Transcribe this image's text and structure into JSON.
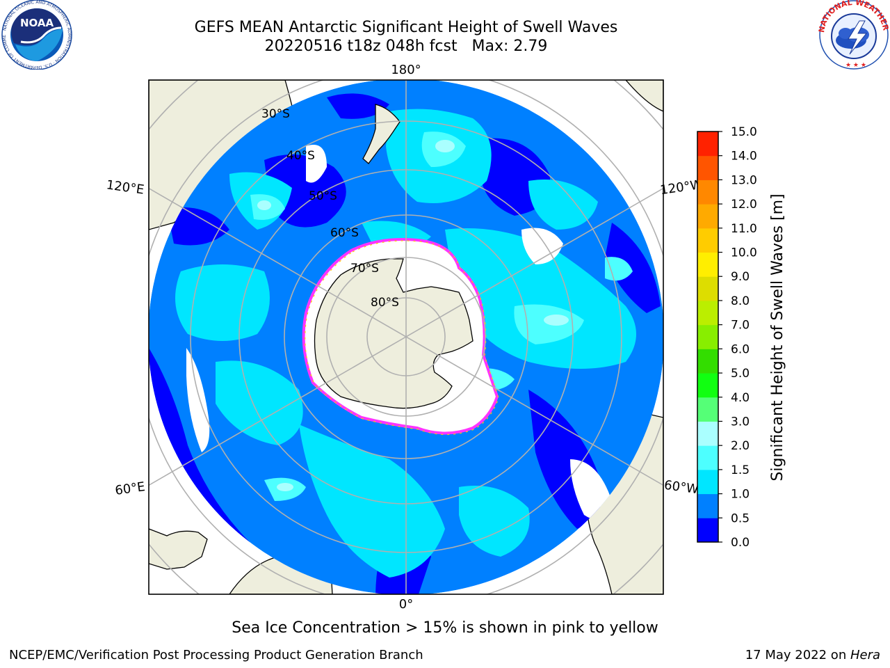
{
  "header": {
    "title_line1": "GEFS MEAN Antarctic Significant Height of Swell Waves",
    "title_line2": "20220516 t18z 048h fcst   Max: 2.79"
  },
  "logos": {
    "noaa_text": "NOAA",
    "noaa_ring_text": "NATIONAL OCEANIC AND ATMOSPHERIC ADMINISTRATION · U.S. DEPARTMENT OF COMMERCE",
    "nws_ring_text": "NATIONAL WEATHER SERVICE"
  },
  "map": {
    "projection": "south-polar-stereographic",
    "longitude_labels": [
      "180°",
      "120°E",
      "120°W",
      "60°E",
      "60°W",
      "0°"
    ],
    "latitude_labels": [
      "30°S",
      "40°S",
      "50°S",
      "60°S",
      "70°S",
      "80°S"
    ],
    "colors": {
      "land": "#eeeedd",
      "gridline": "#b0b0b0",
      "ice": "#ffffff",
      "ice_edge": "#ff33ff"
    }
  },
  "colorbar": {
    "label": "Significant Height of Swell Waves [m]",
    "ticks": [
      "0.0",
      "0.5",
      "1.0",
      "1.5",
      "2.0",
      "3.0",
      "4.0",
      "5.0",
      "6.0",
      "7.0",
      "8.0",
      "9.0",
      "10.0",
      "11.0",
      "12.0",
      "13.0",
      "14.0",
      "15.0"
    ],
    "colors": [
      "#0000ff",
      "#0080ff",
      "#00e6ff",
      "#4dffff",
      "#aaffff",
      "#55ff77",
      "#11ff11",
      "#33dd00",
      "#88ee00",
      "#bbee00",
      "#dddd00",
      "#ffee00",
      "#ffcc00",
      "#ffaa00",
      "#ff8800",
      "#ff5500",
      "#ff2200"
    ]
  },
  "footer": {
    "note": "Sea Ice Concentration > 15% is shown in pink to yellow",
    "credit_left": "NCEP/EMC/Verification Post Processing Product Generation Branch",
    "credit_date": "17 May 2022 on ",
    "credit_machine": "Hera"
  }
}
